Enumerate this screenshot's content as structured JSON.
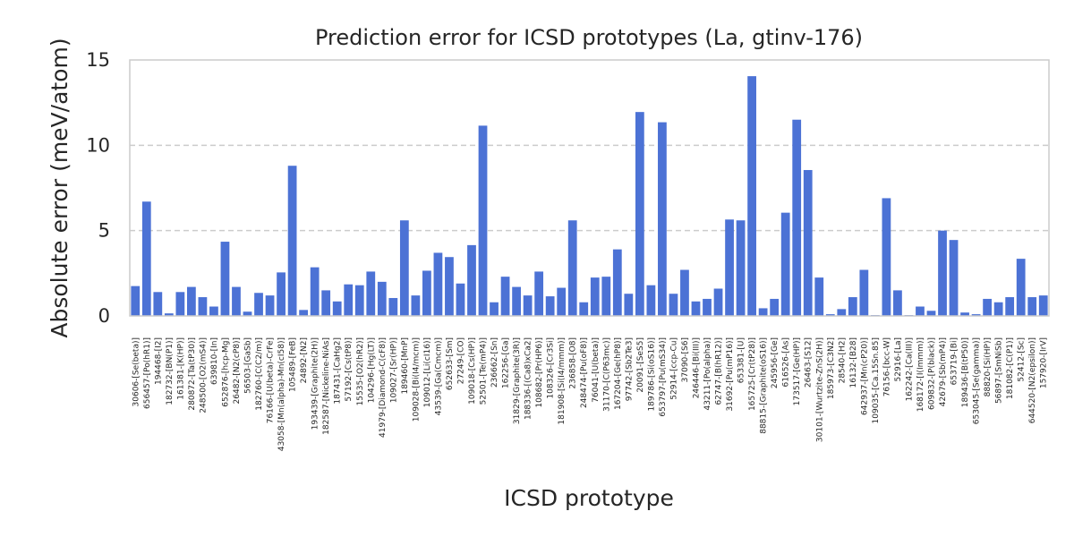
{
  "chart_data": {
    "type": "bar",
    "title": "Prediction error for ICSD prototypes (La, gtinv-176)",
    "xlabel": "ICSD prototype",
    "ylabel": "Absolute error (meV/atom)",
    "ylim": [
      0,
      15
    ],
    "yticks": [
      0,
      5,
      10,
      15
    ],
    "grid": "horizontal dashed",
    "bar_color": "#4c72d5",
    "categories": [
      "30606-[Se(beta)]",
      "656457-[Po(hR1)]",
      "194468-[I2]",
      "182732-[BN(P1)]",
      "161381-[K(HP)]",
      "280872-[Ta(tP30)]",
      "248500-[O2(mS4)]",
      "639810-[In]",
      "652876-[hcp-Mg]",
      "26482-[N2(cP8)]",
      "56503-[GaSb]",
      "182760-[C(C2/m)]",
      "76166-[U(beta)-CrFe]",
      "43058-[Mn(alpha)-Mn(cI58)]",
      "105489-[FeB]",
      "24892-[N2]",
      "193439-[Graphite(2H)]",
      "182587-[Nickeline-NiAs]",
      "187431-[CaHg2]",
      "57192-[Cs(tP8)]",
      "15535-[O2(hR2)]",
      "104296-[Hg(LT)]",
      "41979-[Diamond-C(cF8)]",
      "109027-[Sr(HP)]",
      "189460-[MnP]",
      "109028-[Bi(I4/mcm)]",
      "109012-[Li(cI16)]",
      "43539-[Ga(Cmcm)]",
      "652633-[Sm]",
      "27249-[CO]",
      "109018-[Cs(HP)]",
      "52501-[Te(mP4)]",
      "236662-[Sn]",
      "162256-[Ga]",
      "31829-[Graphite(3R)]",
      "188336-[(Ca8)xCa2]",
      "108682-[Pr(HP6)]",
      "108326-[Cr3Si]",
      "181908-[Si(I4/mmm)]",
      "236858-[O8]",
      "248474-[Pu(oF8)]",
      "76041-[U(beta)]",
      "31170-[C(P63mc)]",
      "167204-[Ge(hP8)]",
      "97742-[Sb2Te3]",
      "20091-[SeS5]",
      "189786-[Si(oS16)]",
      "653797-[Pu(mS34)]",
      "52914-[ccp-Cu]",
      "37090-[S6]",
      "246446-[Bi(III)]",
      "43211-[Po(alpha)]",
      "62747-[B(hR12)]",
      "31692-[Pu(mP16)]",
      "653381-[U]",
      "165725-[Cr(tP28)]",
      "88815-[Graphite(oS16)]",
      "245956-[Ge]",
      "616526-[As]",
      "173517-[Ge(HP)]",
      "26463-[S12]",
      "30101-[Wurtzite-ZnS(2H)]",
      "185973-[C3N2]",
      "28540-[H2]",
      "16132-[B28]",
      "642937-[Mn(cP20)]",
      "109035-[Ca.15Sn.85]",
      "76156-[bcc-W]",
      "52916-[La]",
      "162242-[Ca(III)]",
      "168172-[I(Immm)]",
      "609832-[P(black)]",
      "42679-[Sb(mP4)]",
      "653719-[Bi]",
      "189436-[B(tP50)]",
      "653045-[Se(gamma)]",
      "88820-[Si(HP)]",
      "56897-[SmNiSb]",
      "181082-[C(P1)]",
      "52412-[Sc]",
      "644520-[N2(epsilon)]",
      "157920-[IrV]"
    ],
    "values": [
      1.75,
      6.7,
      1.4,
      0.15,
      1.4,
      1.7,
      1.1,
      0.55,
      4.35,
      1.7,
      0.25,
      1.35,
      1.2,
      2.55,
      8.8,
      0.35,
      2.85,
      1.5,
      0.85,
      1.85,
      1.8,
      2.6,
      2.0,
      1.05,
      5.6,
      1.2,
      2.65,
      3.7,
      3.45,
      1.9,
      4.15,
      11.15,
      0.8,
      2.3,
      1.7,
      1.2,
      2.6,
      1.15,
      1.65,
      5.6,
      0.8,
      2.25,
      2.3,
      3.9,
      1.3,
      11.95,
      1.8,
      11.35,
      1.3,
      2.7,
      0.85,
      1.0,
      1.6,
      5.65,
      5.6,
      14.05,
      0.45,
      1.0,
      6.05,
      11.5,
      8.55,
      2.25,
      0.1,
      0.4,
      1.1,
      2.7,
      0.05,
      6.9,
      1.5,
      0.05,
      0.55,
      0.3,
      5.0,
      4.45,
      0.2,
      0.1,
      1.0,
      0.8,
      1.1,
      3.35,
      1.1,
      1.2
    ]
  }
}
